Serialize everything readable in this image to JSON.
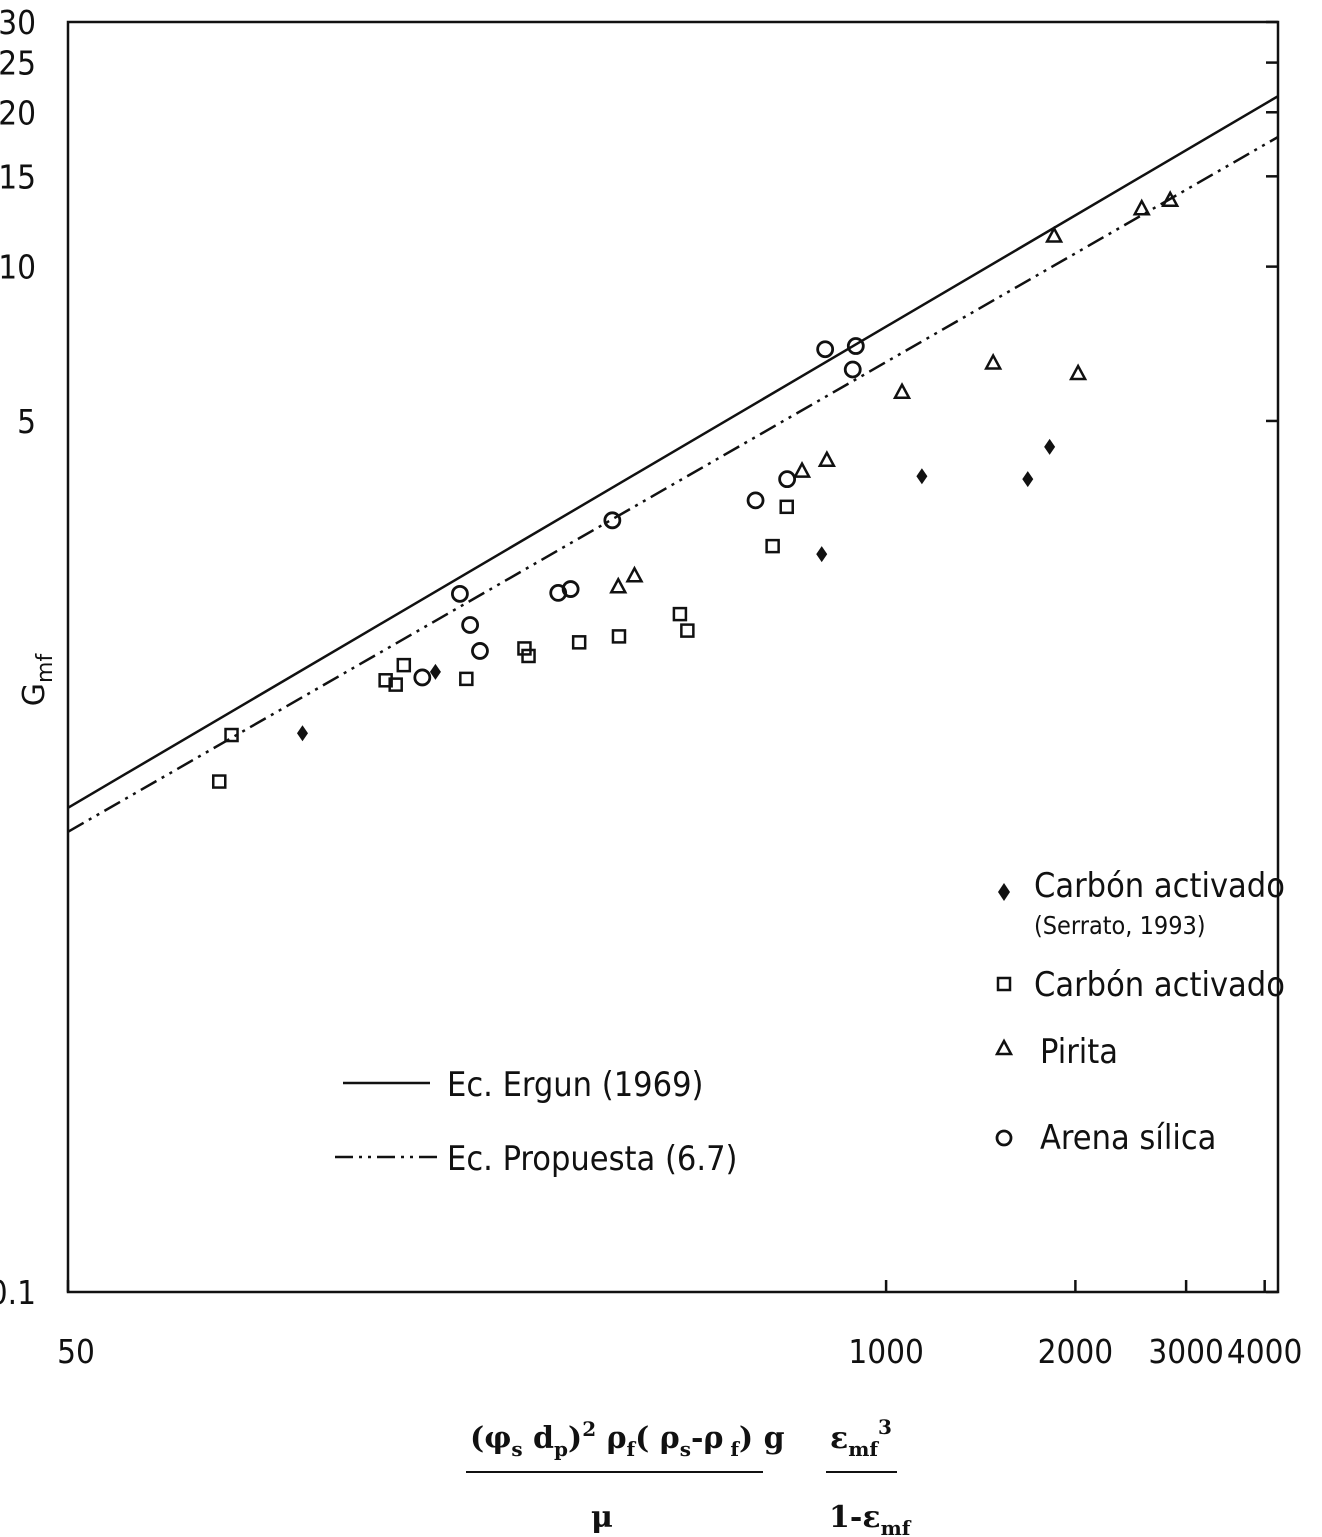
{
  "chart_data": {
    "type": "scatter",
    "x_scale": "log",
    "y_scale": "log",
    "xlim": [
      50,
      4200
    ],
    "ylim": [
      0.1,
      30
    ],
    "x_ticks": [
      {
        "value": 50,
        "label": "50"
      },
      {
        "value": 1000,
        "label": "1000"
      },
      {
        "value": 2000,
        "label": "2000"
      },
      {
        "value": 3000,
        "label": "3000"
      },
      {
        "value": 4000,
        "label": "4000"
      }
    ],
    "y_ticks": [
      {
        "value": 0.1,
        "label": "0.1"
      },
      {
        "value": 5,
        "label": "5"
      },
      {
        "value": 10,
        "label": "10"
      },
      {
        "value": 15,
        "label": "15"
      },
      {
        "value": 20,
        "label": "20"
      },
      {
        "value": 25,
        "label": "25"
      },
      {
        "value": 30,
        "label": "30"
      }
    ],
    "ylabel": "G",
    "ylabel_sub": "mf",
    "xlabel": {
      "num_main": "(φ",
      "num_s": "s",
      "num_dp": " d",
      "num_p": "p",
      "num_sq": ")",
      "num_2": "2",
      "num_rho": " ρ",
      "num_f": "f",
      "num_paren": "( ρ",
      "num_s2": "s",
      "num_minus": "-ρ",
      "num_f2": " f",
      "num_end": ")  g",
      "den": "μ",
      "eps_num": "ε",
      "eps_num_sub": "mf",
      "eps_num_sup": "3",
      "eps_den": "1-ε",
      "eps_den_sub": "mf"
    },
    "series": [
      {
        "name": "Carbón activado",
        "name_note": "(Serrato, 1993)",
        "marker": "diamond",
        "points": [
          [
            118,
            1.23
          ],
          [
            192,
            1.62
          ],
          [
            790,
            2.75
          ],
          [
            1140,
            3.9
          ],
          [
            1680,
            3.85
          ],
          [
            1820,
            4.45
          ]
        ]
      },
      {
        "name": "Carbón activado",
        "marker": "square",
        "points": [
          [
            87,
            0.99
          ],
          [
            91,
            1.22
          ],
          [
            160,
            1.56
          ],
          [
            166,
            1.53
          ],
          [
            171,
            1.67
          ],
          [
            215,
            1.57
          ],
          [
            266,
            1.8
          ],
          [
            270,
            1.74
          ],
          [
            325,
            1.85
          ],
          [
            376,
            1.9
          ],
          [
            470,
            2.1
          ],
          [
            483,
            1.95
          ],
          [
            660,
            2.85
          ],
          [
            695,
            3.4
          ]
        ]
      },
      {
        "name": "Pirita",
        "marker": "triangle",
        "points": [
          [
            375,
            2.38
          ],
          [
            398,
            2.5
          ],
          [
            735,
            4.0
          ],
          [
            805,
            4.2
          ],
          [
            1060,
            5.7
          ],
          [
            1480,
            6.5
          ],
          [
            2020,
            6.2
          ],
          [
            1850,
            11.5
          ],
          [
            2550,
            13.0
          ],
          [
            2830,
            13.5
          ]
        ]
      },
      {
        "name": "Arena sílica",
        "marker": "circle",
        "points": [
          [
            210,
            2.3
          ],
          [
            218,
            2.0
          ],
          [
            226,
            1.78
          ],
          [
            183,
            1.58
          ],
          [
            301,
            2.31
          ],
          [
            315,
            2.35
          ],
          [
            367,
            3.2
          ],
          [
            620,
            3.5
          ],
          [
            696,
            3.85
          ],
          [
            800,
            6.9
          ],
          [
            885,
            6.3
          ],
          [
            895,
            7.0
          ]
        ]
      }
    ],
    "lines": [
      {
        "name": "Ec. Ergun (1969)",
        "style": "solid",
        "points": [
          [
            50,
            0.88
          ],
          [
            4200,
            21.5
          ]
        ]
      },
      {
        "name": "Ec. Propuesta (6.7)",
        "style": "dash-dot-dot",
        "points": [
          [
            50,
            0.79
          ],
          [
            4200,
            17.9
          ]
        ]
      }
    ],
    "legend_placement": "lower-right (markers), lower-center (lines)",
    "grid": false
  }
}
